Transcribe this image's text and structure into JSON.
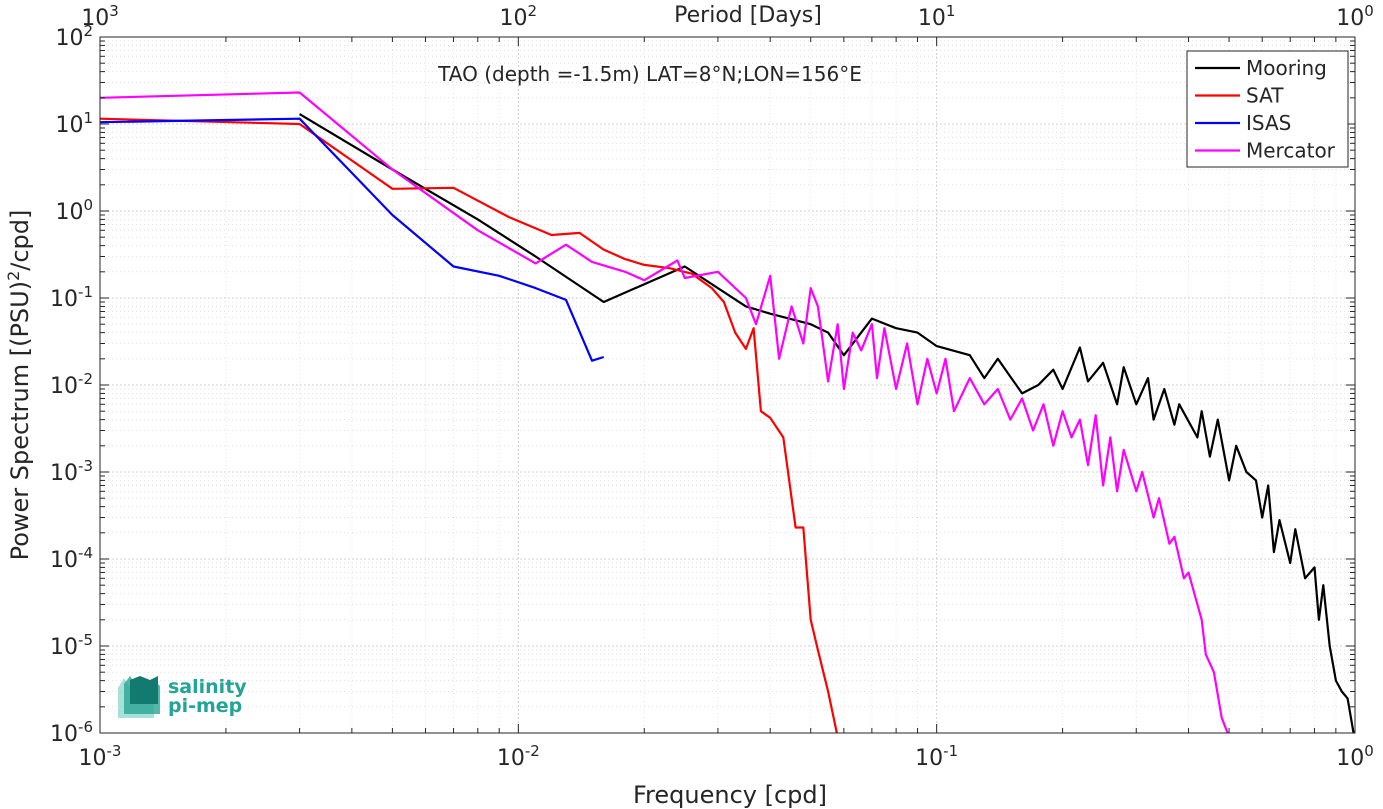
{
  "chart_data": {
    "type": "line",
    "title": "TAO (depth =-1.5m) LAT=8°N;LON=156°E",
    "xlabel": "Frequency [cpd]",
    "ylabel": "Power Spectrum [(PSU)²/cpd]",
    "ylabel_parts": {
      "before": "Power Spectrum [(PSU)",
      "sup": "2",
      "after": "/cpd]"
    },
    "top_axis_label": "Period [Days]",
    "xscale": "log",
    "yscale": "log",
    "xlim": [
      0.001,
      1
    ],
    "ylim": [
      1e-06,
      100
    ],
    "grid": true,
    "legend_position": "top-right",
    "x_ticks": [
      {
        "value": 0.001,
        "base": "10",
        "exp": "-3"
      },
      {
        "value": 0.01,
        "base": "10",
        "exp": "-2"
      },
      {
        "value": 0.1,
        "base": "10",
        "exp": "-1"
      },
      {
        "value": 1,
        "base": "10",
        "exp": "0"
      }
    ],
    "top_ticks": [
      {
        "value": 0.001,
        "base": "10",
        "exp": "3"
      },
      {
        "value": 0.01,
        "base": "10",
        "exp": "2"
      },
      {
        "value": 0.1,
        "base": "10",
        "exp": "1"
      },
      {
        "value": 1,
        "base": "10",
        "exp": "0"
      }
    ],
    "y_ticks": [
      {
        "value": 1e-06,
        "base": "10",
        "exp": "-6"
      },
      {
        "value": 1e-05,
        "base": "10",
        "exp": "-5"
      },
      {
        "value": 0.0001,
        "base": "10",
        "exp": "-4"
      },
      {
        "value": 0.001,
        "base": "10",
        "exp": "-3"
      },
      {
        "value": 0.01,
        "base": "10",
        "exp": "-2"
      },
      {
        "value": 0.1,
        "base": "10",
        "exp": "-1"
      },
      {
        "value": 1,
        "base": "10",
        "exp": "0"
      },
      {
        "value": 10,
        "base": "10",
        "exp": "1"
      },
      {
        "value": 100,
        "base": "10",
        "exp": "2"
      }
    ],
    "series": [
      {
        "name": "Mooring",
        "color": "#000000",
        "points": [
          [
            0.003,
            13
          ],
          [
            0.005,
            3
          ],
          [
            0.008,
            0.8
          ],
          [
            0.011,
            0.3
          ],
          [
            0.016,
            0.09
          ],
          [
            0.025,
            0.23
          ],
          [
            0.035,
            0.08
          ],
          [
            0.04,
            0.066
          ],
          [
            0.05,
            0.05
          ],
          [
            0.055,
            0.04
          ],
          [
            0.06,
            0.022
          ],
          [
            0.07,
            0.058
          ],
          [
            0.08,
            0.045
          ],
          [
            0.09,
            0.04
          ],
          [
            0.1,
            0.028
          ],
          [
            0.12,
            0.022
          ],
          [
            0.13,
            0.012
          ],
          [
            0.14,
            0.02
          ],
          [
            0.16,
            0.008
          ],
          [
            0.175,
            0.01
          ],
          [
            0.19,
            0.015
          ],
          [
            0.2,
            0.009
          ],
          [
            0.22,
            0.027
          ],
          [
            0.23,
            0.011
          ],
          [
            0.25,
            0.018
          ],
          [
            0.27,
            0.006
          ],
          [
            0.28,
            0.016
          ],
          [
            0.3,
            0.006
          ],
          [
            0.32,
            0.012
          ],
          [
            0.33,
            0.004
          ],
          [
            0.35,
            0.009
          ],
          [
            0.37,
            0.0035
          ],
          [
            0.38,
            0.006
          ],
          [
            0.42,
            0.0025
          ],
          [
            0.43,
            0.005
          ],
          [
            0.45,
            0.0015
          ],
          [
            0.47,
            0.004
          ],
          [
            0.5,
            0.0008
          ],
          [
            0.52,
            0.002
          ],
          [
            0.55,
            0.001
          ],
          [
            0.58,
            0.0008
          ],
          [
            0.6,
            0.0003
          ],
          [
            0.62,
            0.0007
          ],
          [
            0.64,
            0.00012
          ],
          [
            0.66,
            0.00028
          ],
          [
            0.7,
            9e-05
          ],
          [
            0.72,
            0.00022
          ],
          [
            0.76,
            6e-05
          ],
          [
            0.8,
            8e-05
          ],
          [
            0.82,
            2e-05
          ],
          [
            0.84,
            5e-05
          ],
          [
            0.87,
            1e-05
          ],
          [
            0.9,
            4e-06
          ],
          [
            0.93,
            3e-06
          ],
          [
            0.96,
            2.5e-06
          ],
          [
            1.0,
            8e-07
          ]
        ]
      },
      {
        "name": "SAT",
        "color": "#ff0000",
        "points": [
          [
            0.001,
            11.5
          ],
          [
            0.003,
            10
          ],
          [
            0.005,
            1.8
          ],
          [
            0.007,
            1.85
          ],
          [
            0.0095,
            0.85
          ],
          [
            0.012,
            0.53
          ],
          [
            0.014,
            0.56
          ],
          [
            0.016,
            0.36
          ],
          [
            0.018,
            0.28
          ],
          [
            0.02,
            0.24
          ],
          [
            0.023,
            0.22
          ],
          [
            0.026,
            0.19
          ],
          [
            0.029,
            0.13
          ],
          [
            0.031,
            0.09
          ],
          [
            0.033,
            0.04
          ],
          [
            0.035,
            0.026
          ],
          [
            0.0365,
            0.045
          ],
          [
            0.038,
            0.005
          ],
          [
            0.04,
            0.0042
          ],
          [
            0.043,
            0.0025
          ],
          [
            0.046,
            0.00023
          ],
          [
            0.048,
            0.00023
          ],
          [
            0.05,
            2e-05
          ],
          [
            0.052,
            9e-06
          ],
          [
            0.055,
            3e-06
          ],
          [
            0.058,
            9e-07
          ]
        ]
      },
      {
        "name": "ISAS",
        "color": "#0000ff",
        "points": [
          [
            0.001,
            10.5
          ],
          [
            0.003,
            11.5
          ],
          [
            0.005,
            0.9
          ],
          [
            0.007,
            0.23
          ],
          [
            0.009,
            0.18
          ],
          [
            0.011,
            0.13
          ],
          [
            0.013,
            0.095
          ],
          [
            0.015,
            0.019
          ],
          [
            0.016,
            0.021
          ]
        ]
      },
      {
        "name": "Mercator",
        "color": "#ff00ff",
        "points": [
          [
            0.001,
            20
          ],
          [
            0.003,
            23
          ],
          [
            0.005,
            3
          ],
          [
            0.008,
            0.6
          ],
          [
            0.011,
            0.25
          ],
          [
            0.013,
            0.41
          ],
          [
            0.015,
            0.26
          ],
          [
            0.018,
            0.2
          ],
          [
            0.02,
            0.16
          ],
          [
            0.024,
            0.27
          ],
          [
            0.025,
            0.17
          ],
          [
            0.03,
            0.2
          ],
          [
            0.035,
            0.1
          ],
          [
            0.037,
            0.05
          ],
          [
            0.04,
            0.18
          ],
          [
            0.042,
            0.02
          ],
          [
            0.045,
            0.08
          ],
          [
            0.048,
            0.03
          ],
          [
            0.05,
            0.13
          ],
          [
            0.052,
            0.08
          ],
          [
            0.055,
            0.011
          ],
          [
            0.058,
            0.05
          ],
          [
            0.06,
            0.009
          ],
          [
            0.063,
            0.04
          ],
          [
            0.066,
            0.025
          ],
          [
            0.07,
            0.05
          ],
          [
            0.072,
            0.012
          ],
          [
            0.075,
            0.045
          ],
          [
            0.08,
            0.009
          ],
          [
            0.085,
            0.03
          ],
          [
            0.09,
            0.006
          ],
          [
            0.095,
            0.02
          ],
          [
            0.1,
            0.008
          ],
          [
            0.105,
            0.02
          ],
          [
            0.11,
            0.005
          ],
          [
            0.12,
            0.012
          ],
          [
            0.13,
            0.006
          ],
          [
            0.14,
            0.009
          ],
          [
            0.15,
            0.004
          ],
          [
            0.16,
            0.007
          ],
          [
            0.17,
            0.003
          ],
          [
            0.18,
            0.006
          ],
          [
            0.19,
            0.002
          ],
          [
            0.2,
            0.005
          ],
          [
            0.21,
            0.0025
          ],
          [
            0.22,
            0.004
          ],
          [
            0.23,
            0.0012
          ],
          [
            0.24,
            0.0045
          ],
          [
            0.25,
            0.0007
          ],
          [
            0.26,
            0.0025
          ],
          [
            0.27,
            0.0006
          ],
          [
            0.28,
            0.0018
          ],
          [
            0.3,
            0.0006
          ],
          [
            0.31,
            0.001
          ],
          [
            0.33,
            0.0003
          ],
          [
            0.34,
            0.0005
          ],
          [
            0.36,
            0.00015
          ],
          [
            0.37,
            0.00018
          ],
          [
            0.39,
            6e-05
          ],
          [
            0.4,
            7e-05
          ],
          [
            0.43,
            2e-05
          ],
          [
            0.44,
            8e-06
          ],
          [
            0.46,
            5e-06
          ],
          [
            0.48,
            1.5e-06
          ],
          [
            0.5,
            9e-07
          ]
        ]
      }
    ]
  },
  "logo": {
    "line1": "salinity",
    "line2": "pi-mep",
    "color": "#22a596"
  }
}
